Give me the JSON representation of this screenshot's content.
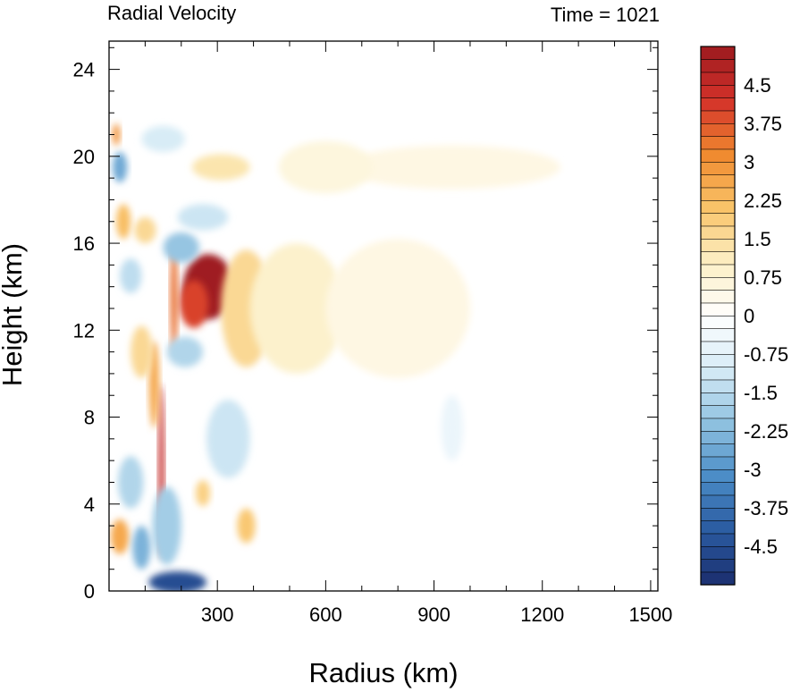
{
  "chart_data": {
    "type": "heatmap",
    "title": "Radial Velocity",
    "subtitle": "Time = 1021",
    "xlabel": "Radius (km)",
    "ylabel": "Height (km)",
    "xlim": [
      0,
      1520
    ],
    "ylim": [
      0,
      25.3
    ],
    "x_ticks": [
      300,
      600,
      900,
      1200,
      1500
    ],
    "y_ticks": [
      0,
      4,
      8,
      12,
      16,
      20,
      24
    ],
    "colorbar": {
      "min": -5.25,
      "max": 5.25,
      "step": 0.25,
      "labels": [
        4.5,
        3.75,
        3,
        2.25,
        1.5,
        0.75,
        0,
        -0.75,
        -1.5,
        -2.25,
        -3,
        -3.75,
        -4.5
      ],
      "stops": [
        "#1b2e6e",
        "#2a5aa0",
        "#4a8cc6",
        "#8fc1e0",
        "#d6ebf6",
        "#ffffff",
        "#fcefc4",
        "#f9c469",
        "#f08a2f",
        "#d4322a",
        "#9c1a1f"
      ]
    },
    "features": [
      {
        "x": 275,
        "y": 14.0,
        "rx": 70,
        "ry": 1.5,
        "value": 5.2
      },
      {
        "x": 235,
        "y": 13.2,
        "rx": 40,
        "ry": 1.1,
        "value": 4.0
      },
      {
        "x": 380,
        "y": 13.0,
        "rx": 70,
        "ry": 2.7,
        "value": 1.6
      },
      {
        "x": 520,
        "y": 13.0,
        "rx": 130,
        "ry": 3.0,
        "value": 0.9
      },
      {
        "x": 800,
        "y": 13.0,
        "rx": 200,
        "ry": 3.2,
        "value": 0.5
      },
      {
        "x": 950,
        "y": 19.5,
        "rx": 300,
        "ry": 1.0,
        "value": 0.5
      },
      {
        "x": 600,
        "y": 19.5,
        "rx": 130,
        "ry": 1.2,
        "value": 0.6
      },
      {
        "x": 180,
        "y": 13.5,
        "rx": 10,
        "ry": 2.5,
        "value": 3.5
      },
      {
        "x": 145,
        "y": 5.5,
        "rx": 8,
        "ry": 4.0,
        "value": 4.5
      },
      {
        "x": 125,
        "y": 9.5,
        "rx": 14,
        "ry": 2.0,
        "value": 2.6
      },
      {
        "x": 90,
        "y": 11.0,
        "rx": 30,
        "ry": 1.2,
        "value": 1.6
      },
      {
        "x": 40,
        "y": 17.0,
        "rx": 20,
        "ry": 0.8,
        "value": 2.2
      },
      {
        "x": 100,
        "y": 16.6,
        "rx": 30,
        "ry": 0.6,
        "value": 1.6
      },
      {
        "x": 20,
        "y": 21.0,
        "rx": 10,
        "ry": 0.5,
        "value": 3.0
      },
      {
        "x": 30,
        "y": 2.5,
        "rx": 25,
        "ry": 0.8,
        "value": 2.6
      },
      {
        "x": 260,
        "y": 4.5,
        "rx": 20,
        "ry": 0.6,
        "value": 1.8
      },
      {
        "x": 380,
        "y": 3.0,
        "rx": 25,
        "ry": 0.8,
        "value": 2.0
      },
      {
        "x": 310,
        "y": 19.5,
        "rx": 80,
        "ry": 0.6,
        "value": 1.3
      },
      {
        "x": 200,
        "y": 15.8,
        "rx": 50,
        "ry": 0.7,
        "value": -2.0
      },
      {
        "x": 260,
        "y": 17.2,
        "rx": 70,
        "ry": 0.6,
        "value": -1.2
      },
      {
        "x": 160,
        "y": 3.0,
        "rx": 40,
        "ry": 1.8,
        "value": -1.8
      },
      {
        "x": 190,
        "y": 0.4,
        "rx": 80,
        "ry": 0.5,
        "value": -4.5
      },
      {
        "x": 210,
        "y": 11.0,
        "rx": 50,
        "ry": 0.7,
        "value": -1.6
      },
      {
        "x": 30,
        "y": 19.5,
        "rx": 20,
        "ry": 0.7,
        "value": -2.6
      },
      {
        "x": 60,
        "y": 14.5,
        "rx": 30,
        "ry": 0.8,
        "value": -1.4
      },
      {
        "x": 60,
        "y": 5.0,
        "rx": 35,
        "ry": 1.2,
        "value": -1.6
      },
      {
        "x": 90,
        "y": 2.0,
        "rx": 25,
        "ry": 1.0,
        "value": -2.4
      },
      {
        "x": 330,
        "y": 7.0,
        "rx": 60,
        "ry": 1.8,
        "value": -1.2
      },
      {
        "x": 150,
        "y": 20.8,
        "rx": 60,
        "ry": 0.6,
        "value": -1.0
      },
      {
        "x": 950,
        "y": 7.5,
        "rx": 30,
        "ry": 1.5,
        "value": -0.5
      }
    ]
  }
}
